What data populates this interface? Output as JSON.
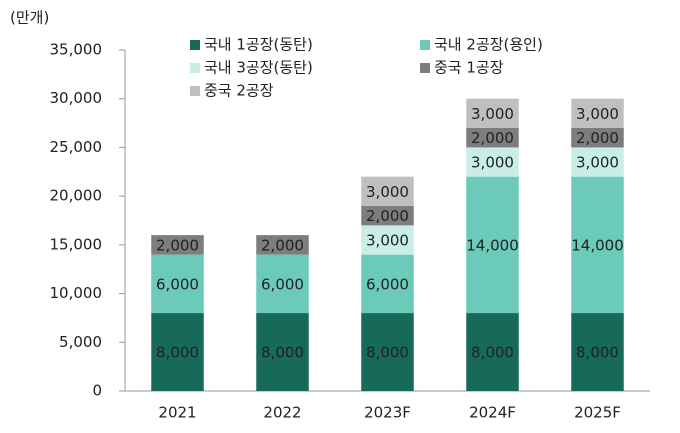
{
  "chart_data": {
    "type": "stacked_bar",
    "y_label": "(만개)",
    "categories": [
      "2021",
      "2022",
      "2023F",
      "2024F",
      "2025F"
    ],
    "series": [
      {
        "name": "국내 1공장(동탄)",
        "color": "#17695a",
        "values": [
          8000,
          8000,
          8000,
          8000,
          8000
        ],
        "value_labels": [
          "8,000",
          "8,000",
          "8,000",
          "8,000",
          "8,000"
        ]
      },
      {
        "name": "국내 2공장(용인)",
        "color": "#6ccabb",
        "values": [
          6000,
          6000,
          6000,
          14000,
          14000
        ],
        "value_labels": [
          "6,000",
          "6,000",
          "6,000",
          "14,000",
          "14,000"
        ]
      },
      {
        "name": "국내 3공장(동탄)",
        "color": "#c9eee7",
        "values": [
          null,
          null,
          3000,
          3000,
          3000
        ],
        "value_labels": [
          null,
          null,
          "3,000",
          "3,000",
          "3,000"
        ]
      },
      {
        "name": "중국 1공장",
        "color": "#7d7d7d",
        "values": [
          2000,
          2000,
          2000,
          2000,
          2000
        ],
        "value_labels": [
          "2,000",
          "2,000",
          "2,000",
          "2,000",
          "2,000"
        ]
      },
      {
        "name": "중국 2공장",
        "color": "#bfbfbf",
        "values": [
          null,
          null,
          3000,
          3000,
          3000
        ],
        "value_labels": [
          null,
          null,
          "3,000",
          "3,000",
          "3,000"
        ]
      }
    ],
    "ylim": [
      0,
      35000
    ],
    "yticks": [
      0,
      {
        "value": 5000,
        "label": "5,000"
      },
      {
        "value": 10000,
        "label": "10,000"
      },
      {
        "value": 15000,
        "label": "15,000"
      },
      {
        "value": 20000,
        "label": "20,000"
      },
      {
        "value": 25000,
        "label": "25,000"
      },
      {
        "value": 30000,
        "label": "30,000"
      },
      {
        "value": 35000,
        "label": "35,000"
      }
    ]
  }
}
